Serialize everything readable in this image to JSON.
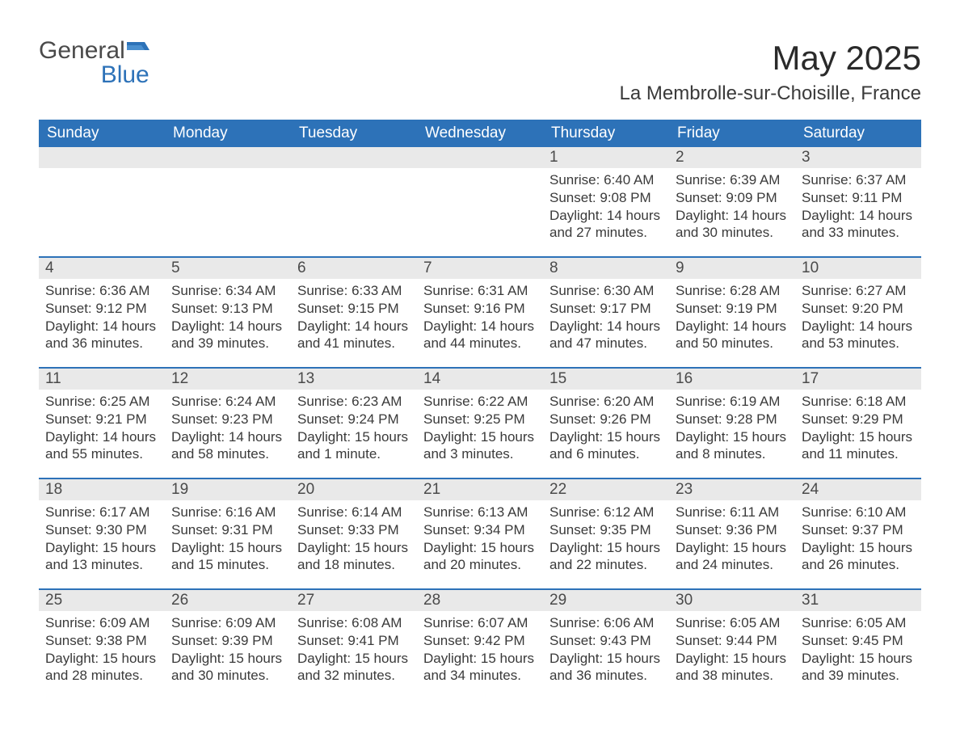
{
  "brand": {
    "name_part1": "General",
    "name_part2": "Blue"
  },
  "title": "May 2025",
  "location": "La Membrolle-sur-Choisille, France",
  "colors": {
    "header_bg": "#2d72b8",
    "header_text": "#ffffff",
    "daynum_bg": "#e9e9e9",
    "text": "#3a3a3a",
    "rule": "#2d72b8",
    "page_bg": "#ffffff"
  },
  "typography": {
    "title_fontsize": 42,
    "location_fontsize": 24,
    "dayhead_fontsize": 19,
    "body_fontsize": 17
  },
  "layout": {
    "columns": 7,
    "rows": 5,
    "type": "calendar"
  },
  "day_headers": [
    "Sunday",
    "Monday",
    "Tuesday",
    "Wednesday",
    "Thursday",
    "Friday",
    "Saturday"
  ],
  "weeks": [
    [
      null,
      null,
      null,
      null,
      {
        "n": "1",
        "sunrise": "6:40 AM",
        "sunset": "9:08 PM",
        "daylight": "14 hours and 27 minutes."
      },
      {
        "n": "2",
        "sunrise": "6:39 AM",
        "sunset": "9:09 PM",
        "daylight": "14 hours and 30 minutes."
      },
      {
        "n": "3",
        "sunrise": "6:37 AM",
        "sunset": "9:11 PM",
        "daylight": "14 hours and 33 minutes."
      }
    ],
    [
      {
        "n": "4",
        "sunrise": "6:36 AM",
        "sunset": "9:12 PM",
        "daylight": "14 hours and 36 minutes."
      },
      {
        "n": "5",
        "sunrise": "6:34 AM",
        "sunset": "9:13 PM",
        "daylight": "14 hours and 39 minutes."
      },
      {
        "n": "6",
        "sunrise": "6:33 AM",
        "sunset": "9:15 PM",
        "daylight": "14 hours and 41 minutes."
      },
      {
        "n": "7",
        "sunrise": "6:31 AM",
        "sunset": "9:16 PM",
        "daylight": "14 hours and 44 minutes."
      },
      {
        "n": "8",
        "sunrise": "6:30 AM",
        "sunset": "9:17 PM",
        "daylight": "14 hours and 47 minutes."
      },
      {
        "n": "9",
        "sunrise": "6:28 AM",
        "sunset": "9:19 PM",
        "daylight": "14 hours and 50 minutes."
      },
      {
        "n": "10",
        "sunrise": "6:27 AM",
        "sunset": "9:20 PM",
        "daylight": "14 hours and 53 minutes."
      }
    ],
    [
      {
        "n": "11",
        "sunrise": "6:25 AM",
        "sunset": "9:21 PM",
        "daylight": "14 hours and 55 minutes."
      },
      {
        "n": "12",
        "sunrise": "6:24 AM",
        "sunset": "9:23 PM",
        "daylight": "14 hours and 58 minutes."
      },
      {
        "n": "13",
        "sunrise": "6:23 AM",
        "sunset": "9:24 PM",
        "daylight": "15 hours and 1 minute."
      },
      {
        "n": "14",
        "sunrise": "6:22 AM",
        "sunset": "9:25 PM",
        "daylight": "15 hours and 3 minutes."
      },
      {
        "n": "15",
        "sunrise": "6:20 AM",
        "sunset": "9:26 PM",
        "daylight": "15 hours and 6 minutes."
      },
      {
        "n": "16",
        "sunrise": "6:19 AM",
        "sunset": "9:28 PM",
        "daylight": "15 hours and 8 minutes."
      },
      {
        "n": "17",
        "sunrise": "6:18 AM",
        "sunset": "9:29 PM",
        "daylight": "15 hours and 11 minutes."
      }
    ],
    [
      {
        "n": "18",
        "sunrise": "6:17 AM",
        "sunset": "9:30 PM",
        "daylight": "15 hours and 13 minutes."
      },
      {
        "n": "19",
        "sunrise": "6:16 AM",
        "sunset": "9:31 PM",
        "daylight": "15 hours and 15 minutes."
      },
      {
        "n": "20",
        "sunrise": "6:14 AM",
        "sunset": "9:33 PM",
        "daylight": "15 hours and 18 minutes."
      },
      {
        "n": "21",
        "sunrise": "6:13 AM",
        "sunset": "9:34 PM",
        "daylight": "15 hours and 20 minutes."
      },
      {
        "n": "22",
        "sunrise": "6:12 AM",
        "sunset": "9:35 PM",
        "daylight": "15 hours and 22 minutes."
      },
      {
        "n": "23",
        "sunrise": "6:11 AM",
        "sunset": "9:36 PM",
        "daylight": "15 hours and 24 minutes."
      },
      {
        "n": "24",
        "sunrise": "6:10 AM",
        "sunset": "9:37 PM",
        "daylight": "15 hours and 26 minutes."
      }
    ],
    [
      {
        "n": "25",
        "sunrise": "6:09 AM",
        "sunset": "9:38 PM",
        "daylight": "15 hours and 28 minutes."
      },
      {
        "n": "26",
        "sunrise": "6:09 AM",
        "sunset": "9:39 PM",
        "daylight": "15 hours and 30 minutes."
      },
      {
        "n": "27",
        "sunrise": "6:08 AM",
        "sunset": "9:41 PM",
        "daylight": "15 hours and 32 minutes."
      },
      {
        "n": "28",
        "sunrise": "6:07 AM",
        "sunset": "9:42 PM",
        "daylight": "15 hours and 34 minutes."
      },
      {
        "n": "29",
        "sunrise": "6:06 AM",
        "sunset": "9:43 PM",
        "daylight": "15 hours and 36 minutes."
      },
      {
        "n": "30",
        "sunrise": "6:05 AM",
        "sunset": "9:44 PM",
        "daylight": "15 hours and 38 minutes."
      },
      {
        "n": "31",
        "sunrise": "6:05 AM",
        "sunset": "9:45 PM",
        "daylight": "15 hours and 39 minutes."
      }
    ]
  ],
  "labels": {
    "sunrise": "Sunrise:",
    "sunset": "Sunset:",
    "daylight": "Daylight:"
  }
}
